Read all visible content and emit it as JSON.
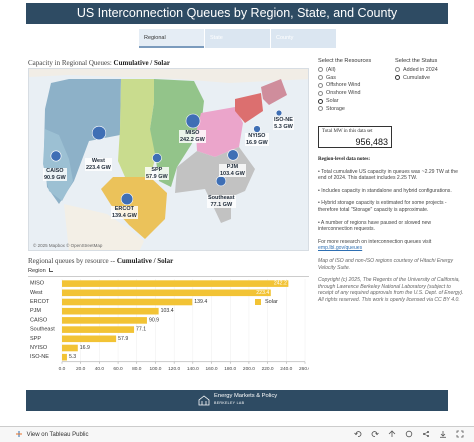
{
  "header": {
    "title": "US Interconnection Queues by Region, State, and County"
  },
  "tabs": [
    {
      "label": "Regional",
      "active": true
    },
    {
      "label": "State",
      "active": false
    },
    {
      "label": "County",
      "active": false
    }
  ],
  "map": {
    "title_prefix": "Capacity in Regional Queues:",
    "title_mode": "Cumulative / Solar",
    "attribution": "© 2025 Mapbox  © OpenStreetMap",
    "regions": [
      {
        "name": "CAISO",
        "value_label": "90.9 GW",
        "value": 90.9,
        "color": "#8fb3c9"
      },
      {
        "name": "West",
        "value_label": "223.4 GW",
        "value": 223.4,
        "color": "#7fa7c0"
      },
      {
        "name": "SPP",
        "value_label": "57.9 GW",
        "value": 57.9,
        "color": "#c2d77f"
      },
      {
        "name": "ERCOT",
        "value_label": "139.4 GW",
        "value": 139.4,
        "color": "#e7b94e"
      },
      {
        "name": "MISO",
        "value_label": "242.2 GW",
        "value": 242.2,
        "color": "#86bb7c"
      },
      {
        "name": "PJM",
        "value_label": "103.4 GW",
        "value": 103.4,
        "color": "#e69bc6"
      },
      {
        "name": "Southeast",
        "value_label": "77.1 GW",
        "value": 77.1,
        "color": "#b5b5b5"
      },
      {
        "name": "NYISO",
        "value_label": "16.9 GW",
        "value": 16.9,
        "color": "#d66060"
      },
      {
        "name": "ISO-NE",
        "value_label": "5.3 GW",
        "value": 5.3,
        "color": "#c97f8f"
      }
    ]
  },
  "controls": {
    "resources": {
      "title": "Select the Resources",
      "options": [
        "(All)",
        "Gas",
        "Offshore Wind",
        "Onshore Wind",
        "Solar",
        "Storage"
      ],
      "selected": "Solar"
    },
    "status": {
      "title": "Select the Status",
      "options": [
        "Added in 2024",
        "Cumulative"
      ],
      "selected": "Cumulative"
    }
  },
  "total": {
    "label": "Total MW in this data set",
    "value": "956,483"
  },
  "notes": {
    "title": "Region-level data notes:",
    "bullets": [
      "• Total cumulative US capacity in queues was ~2.29 TW at the end of 2024. This dataset includes 2.25 TW.",
      "• Includes capacity in standalone and hybrid configurations.",
      "• Hybrid storage capacity is estimated for some projects - therefore total \"Storage\" capacity is approximate.",
      "• A number of regions have paused or slowed new interconnection requests."
    ],
    "more_research": "For more research on interconnection queues visit",
    "more_link": "emp.lbl.gov/queues",
    "map_credit": "Map of ISO and non-ISO regions courtesy of Hitachi Energy Velocity Suite.",
    "copyright": "Copyright (c) 2025, The Regents of the University of California, through Lawrence Berkeley National Laboratory (subject to receipt of any required approvals from the U.S. Dept. of Energy). All rights reserved. This work is openly licensed via CC BY 4.0."
  },
  "bar_section": {
    "title_prefix": "Regional queues by resource --",
    "title_mode": "Cumulative / Solar",
    "column_header": "Region"
  },
  "chart_data": {
    "type": "bar",
    "orientation": "horizontal",
    "categories": [
      "MISO",
      "West",
      "ERCOT",
      "PJM",
      "CAISO",
      "Southeast",
      "SPP",
      "NYISO",
      "ISO-NE"
    ],
    "series": [
      {
        "name": "Solar",
        "values": [
          242.2,
          223.4,
          139.4,
          103.4,
          90.9,
          77.1,
          57.9,
          16.9,
          5.3
        ],
        "color": "#f2c335"
      }
    ],
    "data_labels": [
      "242.2",
      "223.4",
      "139.4",
      "103.4",
      "90.9",
      "77.1",
      "57.9",
      "16.9",
      "5.3"
    ],
    "xlim": [
      0,
      260
    ],
    "xticks": [
      "0.0",
      "20.0",
      "40.0",
      "60.0",
      "80.0",
      "100.0",
      "120.0",
      "140.0",
      "160.0",
      "180.0",
      "200.0",
      "220.0",
      "240.0",
      "260.0"
    ],
    "legend": "right"
  },
  "footer": {
    "org_line1": "Energy Markets & Policy",
    "org_line2": "BERKELEY LAB"
  },
  "tableau": {
    "view_link": "View on Tableau Public"
  },
  "colors": {
    "accent": "#2e4b63",
    "bar": "#f2c335",
    "bubble": "#3f6fb5"
  }
}
